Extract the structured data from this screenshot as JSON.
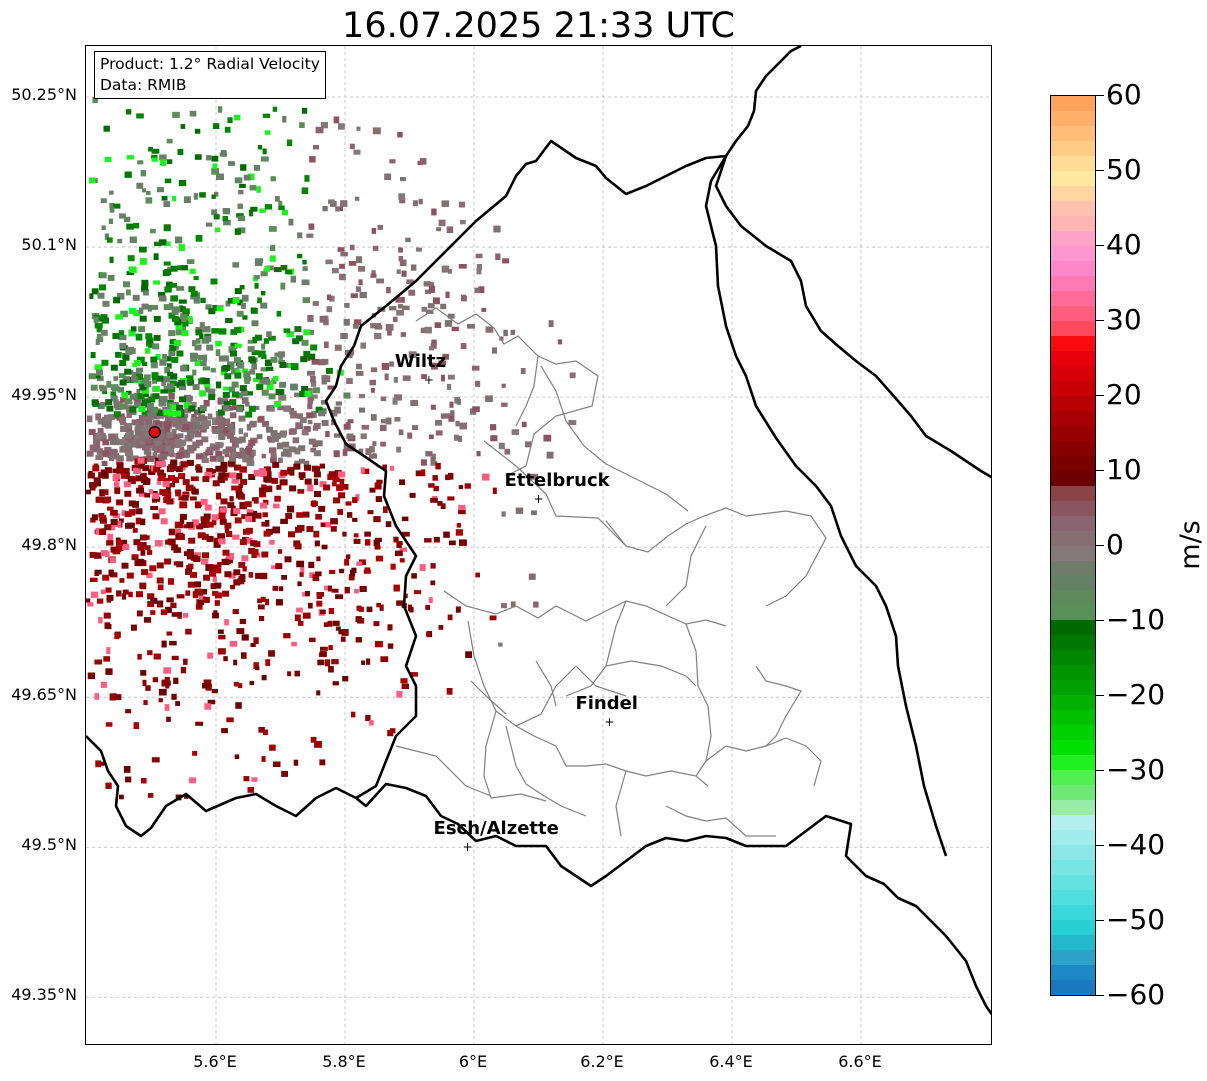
{
  "title": "16.07.2025 21:33 UTC",
  "info": {
    "product": "Product: 1.2° Radial Velocity",
    "data": "Data: RMIB"
  },
  "map": {
    "lat_ticks": [
      "50.25°N",
      "50.1°N",
      "49.95°N",
      "49.8°N",
      "49.65°N",
      "49.5°N",
      "49.35°N"
    ],
    "lon_ticks": [
      "5.6°E",
      "5.8°E",
      "6°E",
      "6.2°E",
      "6.4°E",
      "6.6°E"
    ],
    "cities": [
      {
        "name": "Wiltz",
        "lon": 5.93,
        "lat": 49.967
      },
      {
        "name": "Ettelbruck",
        "lon": 6.1,
        "lat": 49.848
      },
      {
        "name": "Findel",
        "lon": 6.21,
        "lat": 49.625
      },
      {
        "name": "Esch/Alzette",
        "lon": 5.99,
        "lat": 49.5
      }
    ],
    "radar_site": {
      "lon": 5.505,
      "lat": 49.915
    }
  },
  "colorbar": {
    "unit": "m/s",
    "ticks": [
      "60",
      "50",
      "40",
      "30",
      "20",
      "10",
      "0",
      "−10",
      "−20",
      "−30",
      "−40",
      "−50",
      "−60"
    ],
    "colors": [
      "#fea35b",
      "#feb06a",
      "#ffbe78",
      "#ffcc88",
      "#ffdd96",
      "#ffe8a0",
      "#ffd6a2",
      "#ffc2b0",
      "#ffb4b4",
      "#ffa4c8",
      "#ff96d2",
      "#ff86c8",
      "#ff7ab4",
      "#ff6c9a",
      "#ff5e80",
      "#ff4a5e",
      "#f80c10",
      "#e8000a",
      "#d80008",
      "#c80006",
      "#b80004",
      "#a80002",
      "#980000",
      "#880000",
      "#7a0000",
      "#6c0000",
      "#8a4448",
      "#8c5460",
      "#8a6470",
      "#866e72",
      "#84787a",
      "#6e7c6a",
      "#648066",
      "#5e8a5c",
      "#589058",
      "#006a00",
      "#007800",
      "#008600",
      "#009400",
      "#00a000",
      "#00b000",
      "#00c000",
      "#00d000",
      "#00e000",
      "#20f020",
      "#50f050",
      "#70e878",
      "#98eca8",
      "#b4eef0",
      "#a0ecec",
      "#8ce8e8",
      "#78e4e4",
      "#64e2e2",
      "#50dede",
      "#3ad8da",
      "#28d0d4",
      "#24b8cc",
      "#2ca2c8",
      "#1e88c4",
      "#1a7ac0"
    ]
  }
}
